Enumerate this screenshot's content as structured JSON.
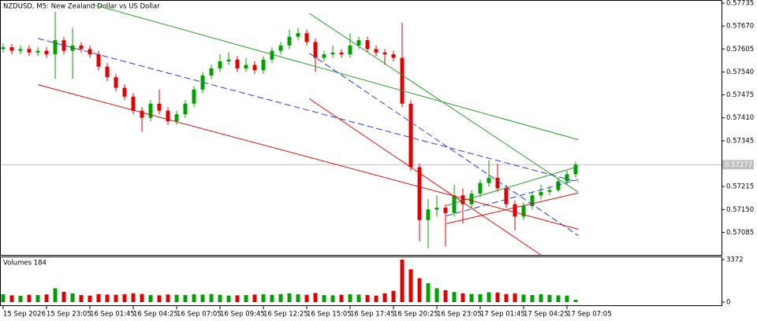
{
  "chart_data": {
    "type": "candlestick",
    "title": "NZDUSD, M5:  New Zealand Dollar vs US Dollar",
    "categories": [
      "15 Sep 2026",
      null,
      null,
      null,
      null,
      "15 Sep 23:05",
      null,
      null,
      null,
      null,
      "16 Sep 01:45",
      null,
      null,
      null,
      null,
      "16 Sep 04:25",
      null,
      null,
      null,
      null,
      "16 Sep 07:05",
      null,
      null,
      null,
      null,
      "16 Sep 09:45",
      null,
      null,
      null,
      null,
      "16 Sep 12:25",
      null,
      null,
      null,
      null,
      "16 Sep 15:05",
      null,
      null,
      null,
      null,
      "16 Sep 17:45",
      null,
      null,
      null,
      null,
      "16 Sep 20:25",
      null,
      null,
      null,
      null,
      "16 Sep 23:05",
      null,
      null,
      null,
      null,
      "17 Sep 01:45",
      null,
      null,
      null,
      null,
      "17 Sep 04:25",
      null,
      null,
      null,
      null,
      "17 Sep 07:05",
      null
    ],
    "open": [
      0.57605,
      0.5761,
      0.576,
      0.57605,
      0.57595,
      0.576,
      0.5759,
      0.5763,
      0.576,
      0.57615,
      0.57605,
      0.5759,
      0.57555,
      0.57525,
      0.57495,
      0.5747,
      0.5743,
      0.5741,
      0.5745,
      0.5743,
      0.574,
      0.5742,
      0.5745,
      0.5749,
      0.5753,
      0.5755,
      0.5757,
      0.57575,
      0.5755,
      0.5756,
      0.57545,
      0.57575,
      0.576,
      0.57615,
      0.5764,
      0.5765,
      0.57625,
      0.5758,
      0.5759,
      0.57595,
      0.5759,
      0.57615,
      0.5763,
      0.57605,
      0.57595,
      0.5759,
      0.5758,
      0.5745,
      0.5727,
      0.5712,
      0.5715,
      0.57155,
      0.5714,
      0.5719,
      0.57165,
      0.57195,
      0.57225,
      0.5724,
      0.5721,
      0.57165,
      0.5713,
      0.5716,
      0.5719,
      0.572,
      0.57205,
      0.5723,
      0.5725
    ],
    "high": [
      0.5762,
      0.5762,
      0.57615,
      0.57615,
      0.5761,
      0.5761,
      0.5771,
      0.5764,
      0.57665,
      0.57625,
      0.57615,
      0.576,
      0.57565,
      0.57535,
      0.57505,
      0.5748,
      0.5744,
      0.5746,
      0.5749,
      0.5744,
      0.5743,
      0.5746,
      0.575,
      0.5754,
      0.5756,
      0.5759,
      0.57595,
      0.57585,
      0.5758,
      0.5757,
      0.57585,
      0.5761,
      0.57625,
      0.5766,
      0.57665,
      0.5766,
      0.57635,
      0.576,
      0.57615,
      0.57605,
      0.5765,
      0.5764,
      0.5764,
      0.57615,
      0.57605,
      0.576,
      0.5768,
      0.5746,
      0.5728,
      0.5718,
      0.5719,
      0.57165,
      0.5722,
      0.5721,
      0.57205,
      0.57235,
      0.5729,
      0.5728,
      0.5722,
      0.57175,
      0.5717,
      0.572,
      0.5722,
      0.57215,
      0.5724,
      0.5726,
      0.57285
    ],
    "low": [
      0.57595,
      0.5759,
      0.5759,
      0.57585,
      0.57585,
      0.5758,
      0.5752,
      0.5759,
      0.5752,
      0.57595,
      0.5758,
      0.57545,
      0.57515,
      0.57485,
      0.5746,
      0.5742,
      0.5737,
      0.574,
      0.5742,
      0.5739,
      0.5739,
      0.5741,
      0.5744,
      0.5748,
      0.5752,
      0.5754,
      0.5756,
      0.5754,
      0.5754,
      0.57535,
      0.57535,
      0.57565,
      0.5759,
      0.57605,
      0.5763,
      0.57615,
      0.5754,
      0.5757,
      0.5758,
      0.5758,
      0.5758,
      0.57605,
      0.57595,
      0.57585,
      0.5756,
      0.5757,
      0.5744,
      0.5726,
      0.5706,
      0.5704,
      0.5713,
      0.57045,
      0.5713,
      0.5711,
      0.57155,
      0.57185,
      0.57215,
      0.572,
      0.57155,
      0.5709,
      0.5712,
      0.5715,
      0.5718,
      0.5719,
      0.572,
      0.5722,
      0.5724
    ],
    "close": [
      0.5761,
      0.576,
      0.57605,
      0.57595,
      0.576,
      0.5759,
      0.5763,
      0.576,
      0.57615,
      0.57605,
      0.5759,
      0.57555,
      0.57525,
      0.57495,
      0.5747,
      0.5743,
      0.5741,
      0.5745,
      0.5743,
      0.574,
      0.5742,
      0.5745,
      0.5749,
      0.5753,
      0.5755,
      0.5757,
      0.57575,
      0.5755,
      0.5756,
      0.57545,
      0.57575,
      0.576,
      0.57615,
      0.5764,
      0.5765,
      0.57625,
      0.5758,
      0.5759,
      0.57595,
      0.5759,
      0.57615,
      0.5763,
      0.57605,
      0.57595,
      0.5759,
      0.5758,
      0.5745,
      0.5727,
      0.5712,
      0.5715,
      0.57155,
      0.5714,
      0.5719,
      0.57165,
      0.57195,
      0.57225,
      0.5724,
      0.5721,
      0.57165,
      0.5713,
      0.5716,
      0.5719,
      0.572,
      0.57205,
      0.5723,
      0.5725,
      0.57277
    ],
    "up_color": "#00a000",
    "down_color": "#e00000",
    "ylim": [
      0.57019,
      0.57744
    ],
    "yticks": [
      {
        "value": 0.57735,
        "label": "0.57735"
      },
      {
        "value": 0.5767,
        "label": "0.57670"
      },
      {
        "value": 0.57605,
        "label": "0.57605"
      },
      {
        "value": 0.5754,
        "label": "0.57540"
      },
      {
        "value": 0.57475,
        "label": "0.57475"
      },
      {
        "value": 0.5741,
        "label": "0.57410"
      },
      {
        "value": 0.57345,
        "label": "0.57345"
      },
      {
        "value": 0.57215,
        "label": "0.57215"
      },
      {
        "value": 0.5715,
        "label": "0.57150"
      },
      {
        "value": 0.57085,
        "label": "0.57085"
      }
    ],
    "last_price": 0.57277,
    "trendlines": [
      {
        "color": "#2e9a2e",
        "dashed": false,
        "x": [
          10.1,
          66.3
        ],
        "y": [
          0.57733,
          0.57348
        ]
      },
      {
        "color": "#2e9a2e",
        "dashed": false,
        "x": [
          35.3,
          66.3
        ],
        "y": [
          0.57706,
          0.57199
        ]
      },
      {
        "color": "#2e9a2e",
        "dashed": false,
        "x": [
          51.1,
          66.3
        ],
        "y": [
          0.57161,
          0.57272
        ]
      },
      {
        "color": "#2a3fd0",
        "dashed": true,
        "x": [
          4,
          66.3
        ],
        "y": [
          0.57635,
          0.57228
        ]
      },
      {
        "color": "#2a3fd0",
        "dashed": true,
        "x": [
          35.3,
          66.3
        ],
        "y": [
          0.57593,
          0.57076
        ]
      },
      {
        "color": "#2a3fd0",
        "dashed": true,
        "x": [
          51.1,
          66.3
        ],
        "y": [
          0.57132,
          0.57235
        ]
      },
      {
        "color": "#e01010",
        "dashed": false,
        "x": [
          4,
          66.3
        ],
        "y": [
          0.57504,
          0.57094
        ]
      },
      {
        "color": "#e01010",
        "dashed": false,
        "x": [
          35.3,
          62
        ],
        "y": [
          0.57464,
          0.57021
        ]
      },
      {
        "color": "#e01010",
        "dashed": false,
        "x": [
          51.1,
          66.3
        ],
        "y": [
          0.5711,
          0.57197
        ]
      }
    ],
    "volume": {
      "label": "Volumes 184",
      "values": [
        620,
        540,
        500,
        580,
        560,
        610,
        1100,
        820,
        700,
        560,
        520,
        640,
        600,
        580,
        620,
        700,
        650,
        560,
        540,
        600,
        580,
        560,
        620,
        600,
        640,
        580,
        520,
        540,
        560,
        600,
        620,
        580,
        640,
        700,
        620,
        580,
        720,
        560,
        540,
        580,
        620,
        600,
        560,
        520,
        700,
        900,
        3372,
        2600,
        1900,
        1500,
        1100,
        950,
        800,
        700,
        650,
        620,
        780,
        760,
        640,
        700,
        600,
        560,
        620,
        580,
        540,
        520,
        184
      ],
      "ylim": [
        0,
        3372
      ],
      "yticks": [
        0,
        3372
      ]
    }
  }
}
